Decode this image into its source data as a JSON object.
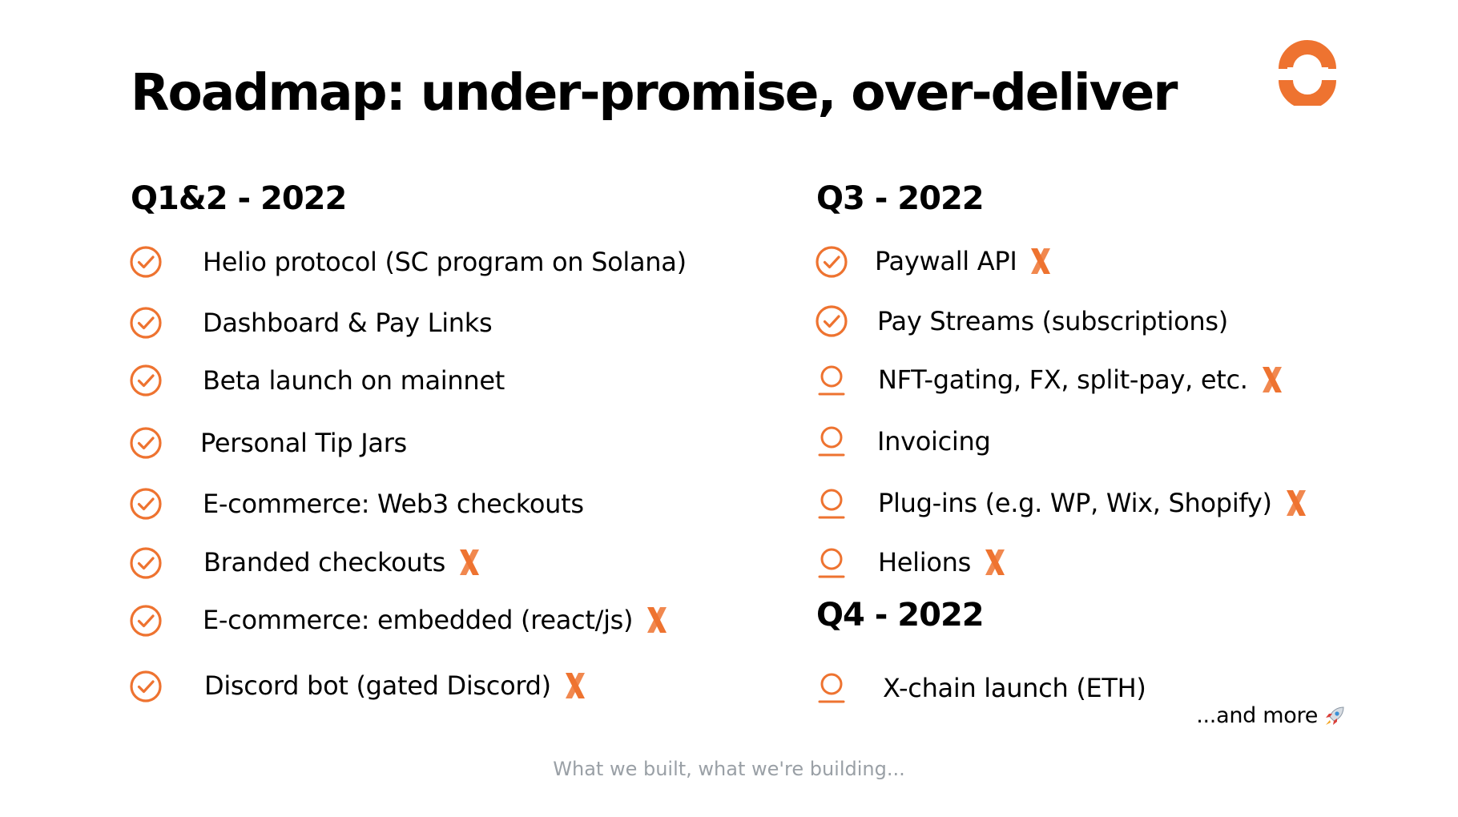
{
  "slide": {
    "title": "Roadmap: under-promise, over-deliver",
    "footer": "What we built, what we're building...",
    "more_note": "...and more"
  },
  "colors": {
    "accent": "#EE7330",
    "text": "#000000",
    "muted": "#9AA0A6"
  },
  "icons": {
    "done": "check-circle-icon",
    "planned": "person-outline-icon",
    "highlight": "x-mark-icon",
    "more": "rocket-icon",
    "logo": "helio-logo-icon"
  },
  "columns": {
    "left": {
      "heading": "Q1&2 - 2022",
      "items": [
        {
          "label": "Helio protocol (SC program on Solana)",
          "status": "done",
          "highlight": false
        },
        {
          "label": "Dashboard & Pay Links",
          "status": "done",
          "highlight": false
        },
        {
          "label": "Beta launch on mainnet",
          "status": "done",
          "highlight": false
        },
        {
          "label": "Personal Tip Jars",
          "status": "done",
          "highlight": false
        },
        {
          "label": "E-commerce: Web3 checkouts",
          "status": "done",
          "highlight": false
        },
        {
          "label": "Branded checkouts",
          "status": "done",
          "highlight": true
        },
        {
          "label": "E-commerce: embedded (react/js)",
          "status": "done",
          "highlight": true
        },
        {
          "label": "Discord bot (gated Discord)",
          "status": "done",
          "highlight": true
        }
      ]
    },
    "right_q3": {
      "heading": "Q3 - 2022",
      "items": [
        {
          "label": "Paywall API",
          "status": "done",
          "highlight": true
        },
        {
          "label": "Pay Streams (subscriptions)",
          "status": "done",
          "highlight": false
        },
        {
          "label": "NFT-gating, FX, split-pay, etc.",
          "status": "planned",
          "highlight": true
        },
        {
          "label": "Invoicing",
          "status": "planned",
          "highlight": false
        },
        {
          "label": "Plug-ins (e.g. WP, Wix, Shopify)",
          "status": "planned",
          "highlight": true
        },
        {
          "label": "Helions",
          "status": "planned",
          "highlight": true
        }
      ]
    },
    "right_q4": {
      "heading": "Q4 - 2022",
      "items": [
        {
          "label": "X-chain launch (ETH)",
          "status": "planned",
          "highlight": false
        }
      ]
    }
  }
}
